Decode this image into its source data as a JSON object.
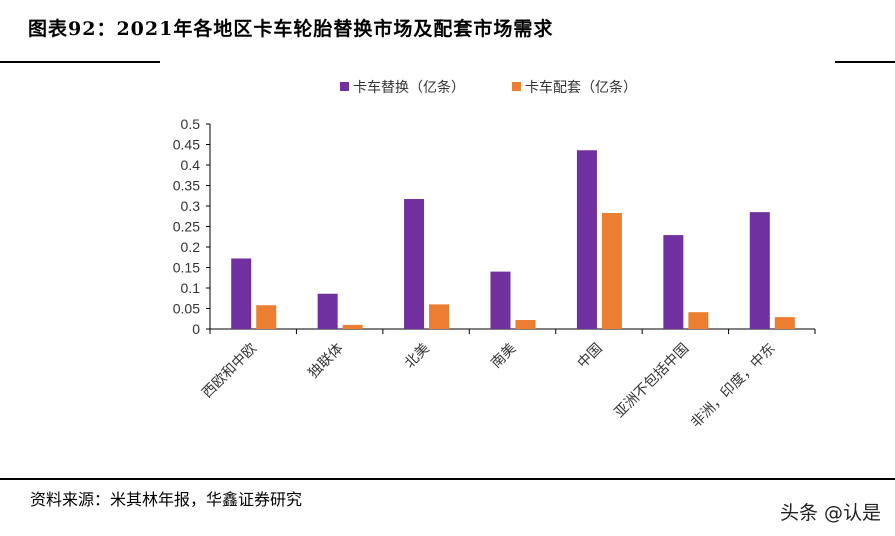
{
  "title": "图表92：2021年各地区卡车轮胎替换市场及配套市场需求",
  "source": "资料来源：米其林年报，华鑫证券研究",
  "watermark": "头条 @认是",
  "chart_data": {
    "type": "bar",
    "categories": [
      "西欧和中欧",
      "独联体",
      "北美",
      "南美",
      "中国",
      "亚洲不包括中国",
      "非洲，印度，中东"
    ],
    "series": [
      {
        "name": "卡车替换（亿条）",
        "color": "#7030A0",
        "values": [
          0.172,
          0.086,
          0.317,
          0.14,
          0.436,
          0.229,
          0.285
        ]
      },
      {
        "name": "卡车配套（亿条）",
        "color": "#ED7D31",
        "values": [
          0.058,
          0.01,
          0.06,
          0.022,
          0.283,
          0.041,
          0.029
        ]
      }
    ],
    "ylim": [
      0,
      0.5
    ],
    "yticks": [
      "0",
      "0.05",
      "0.1",
      "0.15",
      "0.2",
      "0.25",
      "0.3",
      "0.35",
      "0.4",
      "0.45",
      "0.5"
    ],
    "legend": "top",
    "grid": false
  }
}
